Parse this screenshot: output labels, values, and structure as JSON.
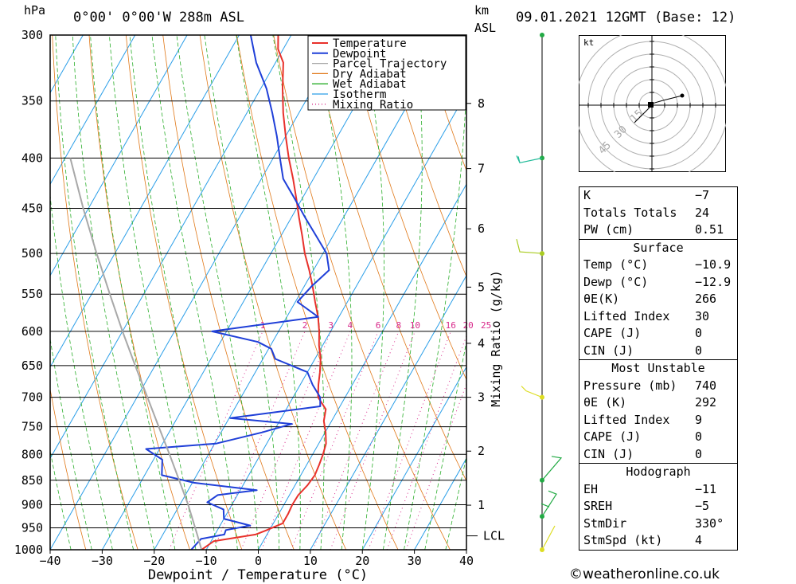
{
  "header": {
    "unit_hpa": "hPa",
    "location": "0°00' 0°00'W 288m ASL",
    "unit_km": "km",
    "unit_asl": "ASL",
    "datetime": "09.01.2021 12GMT (Base: 12)"
  },
  "colors": {
    "temperature": "#e8312b",
    "dewpoint": "#1f3fd8",
    "parcel": "#a8a8a8",
    "dry_adiabat": "#e07818",
    "wet_adiabat": "#2aae2a",
    "isotherm": "#2a9ee8",
    "mixing_ratio": "#d8288a",
    "wind": "#66bb22"
  },
  "chart_data": {
    "type": "line",
    "title": "0°00' 0°00'W 288m ASL",
    "xlabel": "Dewpoint / Temperature (°C)",
    "ylabel": "hPa",
    "xlim": [
      -40,
      40
    ],
    "x_ticks": [
      -40,
      -30,
      -20,
      -10,
      0,
      10,
      20,
      30,
      40
    ],
    "x_tick_labels": [
      "−40",
      "−30",
      "−20",
      "−10",
      "0",
      "10",
      "20",
      "30",
      "40"
    ],
    "pressure_levels": [
      300,
      350,
      400,
      450,
      500,
      550,
      600,
      650,
      700,
      750,
      800,
      850,
      900,
      950,
      1000
    ],
    "plim": [
      300,
      1000
    ],
    "km_axis": {
      "label": "Mixing Ratio (g/kg)",
      "heights_km": [
        1,
        2,
        3,
        4,
        5,
        6,
        7,
        8
      ],
      "height_pressures": [
        901,
        794,
        700,
        617,
        541,
        472,
        410,
        352
      ],
      "lcl_label": "LCL",
      "lcl_pressure": 968
    },
    "mixing_ratio_labels": [
      {
        "label": "1",
        "value": 1
      },
      {
        "label": "2",
        "value": 2
      },
      {
        "label": "3",
        "value": 3
      },
      {
        "label": "4",
        "value": 4
      },
      {
        "label": "6",
        "value": 6
      },
      {
        "label": "8",
        "value": 8
      },
      {
        "label": "10",
        "value": 10
      },
      {
        "label": "16",
        "value": 16
      },
      {
        "label": "20",
        "value": 20
      },
      {
        "label": "25",
        "value": 25
      }
    ],
    "legend": [
      "Temperature",
      "Dewpoint",
      "Parcel Trajectory",
      "Dry Adiabat",
      "Wet Adiabat",
      "Isotherm",
      "Mixing Ratio"
    ],
    "legend_position": "top-right",
    "series": [
      {
        "name": "Temperature",
        "points": [
          [
            1000,
            -10.9
          ],
          [
            980,
            -9.5
          ],
          [
            965,
            -2.2
          ],
          [
            955,
            -0.5
          ],
          [
            940,
            1.8
          ],
          [
            920,
            1.8
          ],
          [
            900,
            1.6
          ],
          [
            880,
            1.7
          ],
          [
            860,
            2.4
          ],
          [
            840,
            2.7
          ],
          [
            820,
            2.4
          ],
          [
            800,
            2.0
          ],
          [
            780,
            1.4
          ],
          [
            760,
            0.1
          ],
          [
            740,
            -1.5
          ],
          [
            720,
            -2.4
          ],
          [
            700,
            -5.2
          ],
          [
            680,
            -6.5
          ],
          [
            660,
            -7.6
          ],
          [
            640,
            -8.9
          ],
          [
            620,
            -10.7
          ],
          [
            600,
            -12.2
          ],
          [
            580,
            -14.0
          ],
          [
            560,
            -16.2
          ],
          [
            540,
            -18.4
          ],
          [
            520,
            -20.8
          ],
          [
            500,
            -23.5
          ],
          [
            480,
            -25.9
          ],
          [
            460,
            -28.5
          ],
          [
            440,
            -31.1
          ],
          [
            420,
            -33.9
          ],
          [
            400,
            -37.0
          ],
          [
            380,
            -40.0
          ],
          [
            360,
            -43.0
          ],
          [
            340,
            -45.8
          ],
          [
            320,
            -48.5
          ],
          [
            310,
            -51.0
          ],
          [
            300,
            -52.5
          ]
        ]
      },
      {
        "name": "Dewpoint",
        "points": [
          [
            1000,
            -12.9
          ],
          [
            975,
            -12.2
          ],
          [
            965,
            -8.2
          ],
          [
            955,
            -8.4
          ],
          [
            945,
            -4.2
          ],
          [
            930,
            -10.0
          ],
          [
            910,
            -11.1
          ],
          [
            895,
            -15.0
          ],
          [
            880,
            -13.8
          ],
          [
            870,
            -6.8
          ],
          [
            855,
            -19.7
          ],
          [
            840,
            -26.7
          ],
          [
            810,
            -28.3
          ],
          [
            790,
            -32.6
          ],
          [
            780,
            -19.7
          ],
          [
            760,
            -12.1
          ],
          [
            745,
            -7.3
          ],
          [
            735,
            -19.8
          ],
          [
            715,
            -3.8
          ],
          [
            700,
            -4.8
          ],
          [
            680,
            -7.6
          ],
          [
            660,
            -10.0
          ],
          [
            640,
            -17.6
          ],
          [
            625,
            -19.5
          ],
          [
            615,
            -22.8
          ],
          [
            600,
            -32.8
          ],
          [
            580,
            -14.0
          ],
          [
            560,
            -19.6
          ],
          [
            540,
            -18.6
          ],
          [
            520,
            -17.0
          ],
          [
            500,
            -19.3
          ],
          [
            480,
            -23.2
          ],
          [
            460,
            -27.3
          ],
          [
            440,
            -31.4
          ],
          [
            420,
            -35.8
          ],
          [
            400,
            -38.7
          ],
          [
            380,
            -41.7
          ],
          [
            360,
            -45.1
          ],
          [
            340,
            -48.9
          ],
          [
            320,
            -53.7
          ],
          [
            300,
            -57.8
          ]
        ]
      },
      {
        "name": "Parcel Trajectory",
        "points": [
          [
            1000,
            -10.9
          ],
          [
            968,
            -13.2
          ],
          [
            900,
            -18.4
          ],
          [
            850,
            -22.8
          ],
          [
            800,
            -27.5
          ],
          [
            750,
            -32.6
          ],
          [
            700,
            -38.0
          ],
          [
            650,
            -43.8
          ],
          [
            600,
            -50.0
          ],
          [
            550,
            -56.5
          ],
          [
            500,
            -63.5
          ],
          [
            450,
            -71.0
          ],
          [
            400,
            -79.0
          ]
        ]
      }
    ]
  },
  "hodograph": {
    "unit": "kt",
    "rings": [
      "15",
      "30",
      "45"
    ]
  },
  "index_table": {
    "rows": [
      {
        "label": "K",
        "value": "−7"
      },
      {
        "label": "Totals Totals",
        "value": "24"
      },
      {
        "label": "PW (cm)",
        "value": "0.51"
      }
    ]
  },
  "surface": {
    "title": "Surface",
    "rows": [
      {
        "label": "Temp (°C)",
        "value": "−10.9"
      },
      {
        "label": "Dewp (°C)",
        "value": "−12.9"
      },
      {
        "label": "θE(K)",
        "value": "266"
      },
      {
        "label": "Lifted Index",
        "value": "30"
      },
      {
        "label": "CAPE (J)",
        "value": "0"
      },
      {
        "label": "CIN (J)",
        "value": "0"
      }
    ]
  },
  "most_unstable": {
    "title": "Most Unstable",
    "rows": [
      {
        "label": "Pressure (mb)",
        "value": "740"
      },
      {
        "label": "θE (K)",
        "value": "292"
      },
      {
        "label": "Lifted Index",
        "value": "9"
      },
      {
        "label": "CAPE (J)",
        "value": "0"
      },
      {
        "label": "CIN (J)",
        "value": "0"
      }
    ]
  },
  "hodograph_table": {
    "title": "Hodograph",
    "rows": [
      {
        "label": "EH",
        "value": "−11"
      },
      {
        "label": "SREH",
        "value": "−5"
      },
      {
        "label": "StmDir",
        "value": "330°"
      },
      {
        "label": "StmSpd (kt)",
        "value": "4"
      }
    ]
  },
  "copyright": "©weatheronline.co.uk"
}
